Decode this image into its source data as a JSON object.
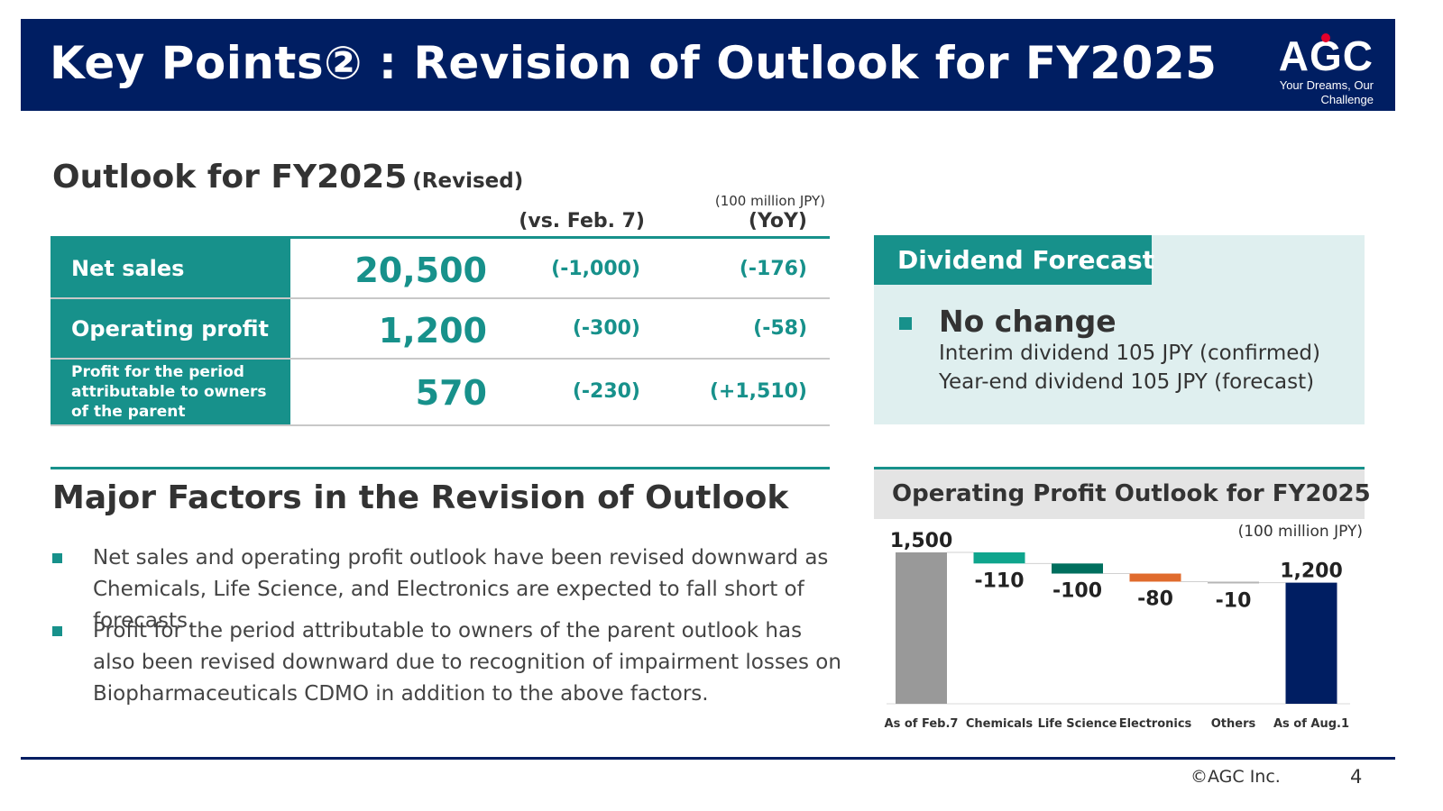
{
  "header": {
    "title": "Key Points② : Revision of Outlook for FY2025",
    "logo_text": "AGC",
    "logo_tagline": "Your Dreams, Our Challenge"
  },
  "outlook": {
    "title": "Outlook for FY2025",
    "title_suffix": "(Revised)",
    "unit": "(100 million JPY)",
    "col_vs": "(vs. Feb. 7)",
    "col_yoy": "(YoY)",
    "rows": [
      {
        "label": "Net sales",
        "value": "20,500",
        "vs": "(-1,000)",
        "yoy": "(-176)"
      },
      {
        "label": "Operating profit",
        "value": "1,200",
        "vs": "(-300)",
        "yoy": "(-58)"
      },
      {
        "label": "Profit for the period attributable to owners of the parent",
        "value": "570",
        "vs": "(-230)",
        "yoy": "(+1,510)"
      }
    ]
  },
  "dividend": {
    "title": "Dividend Forecast",
    "main": "No change",
    "lines": [
      "Interim dividend 105 JPY (confirmed)",
      "Year-end dividend 105 JPY (forecast)"
    ]
  },
  "factors": {
    "title": "Major Factors in the Revision of Outlook",
    "items": [
      "Net sales and operating profit outlook have been revised downward as Chemicals, Life Science, and Electronics are expected to fall short of forecasts.",
      "Profit for the period attributable to owners of the parent outlook has also been revised downward due to recognition of impairment losses on Biopharmaceuticals CDMO in addition to the above factors."
    ]
  },
  "chart_panel": {
    "title": "Operating Profit Outlook for FY2025",
    "unit": "(100 million JPY)"
  },
  "chart_data": {
    "type": "waterfall",
    "title": "Operating Profit Outlook for FY2025",
    "unit": "(100 million JPY)",
    "categories": [
      "As of Feb.7",
      "Chemicals",
      "Life Science",
      "Electronics",
      "Others",
      "As of Aug.1"
    ],
    "values": [
      1500,
      -110,
      -100,
      -80,
      -10,
      1200
    ],
    "labels": [
      "1,500",
      "-110",
      "-100",
      "-80",
      "-10",
      "1,200"
    ],
    "kinds": [
      "total",
      "delta",
      "delta",
      "delta",
      "delta",
      "total"
    ],
    "colors": [
      "#999999",
      "#0fa58d",
      "#006f5e",
      "#e06b2d",
      "#b5b5b5",
      "#001e62"
    ]
  },
  "colors": {
    "navy": "#001e62",
    "teal": "#17918b",
    "panel_bg": "#dfefef"
  },
  "footer": {
    "copyright": "©AGC Inc.",
    "page": "4"
  }
}
